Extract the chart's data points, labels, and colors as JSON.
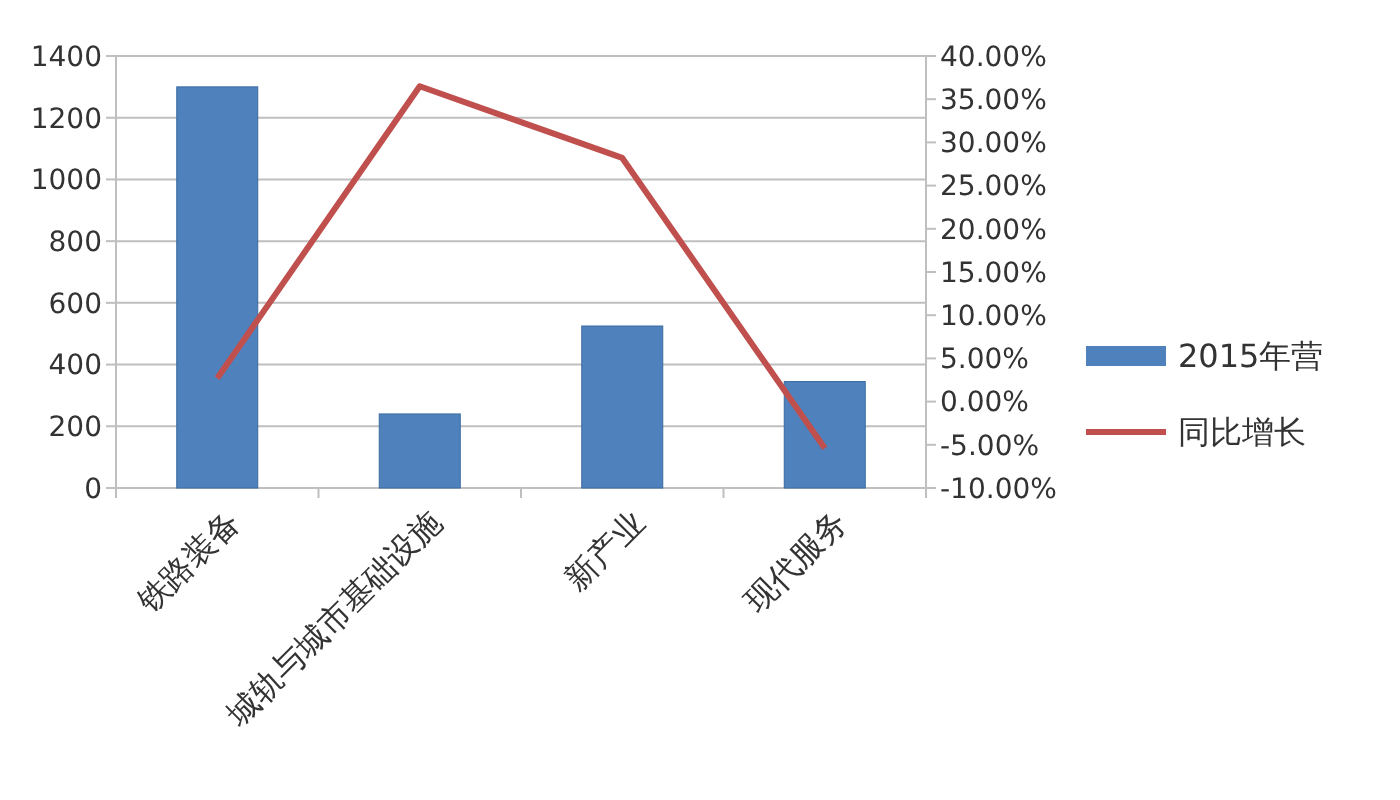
{
  "chart_data": {
    "type": "bar",
    "categories": [
      "铁路装备",
      "城轨与城市基础设施",
      "新产业",
      "现代服务"
    ],
    "series": [
      {
        "name": "2015年营",
        "color": "#4f81bd",
        "values": [
          1300,
          240,
          525,
          345
        ]
      },
      {
        "name": "同比增长",
        "type": "line",
        "axis": "y2",
        "color": "#c0504d",
        "values": [
          2.7,
          36.5,
          28.2,
          -5.4
        ]
      }
    ],
    "ylim": [
      0,
      1400
    ],
    "yticks": [
      0,
      200,
      400,
      600,
      800,
      1000,
      1200,
      1400
    ],
    "y2lim": [
      -10,
      40
    ],
    "y2ticks": [
      {
        "value": -10,
        "label": "-10.00%"
      },
      {
        "value": -5,
        "label": "-5.00%"
      },
      {
        "value": 0,
        "label": "0.00%"
      },
      {
        "value": 5,
        "label": "5.00%"
      },
      {
        "value": 10,
        "label": "10.00%"
      },
      {
        "value": 15,
        "label": "15.00%"
      },
      {
        "value": 20,
        "label": "20.00%"
      },
      {
        "value": 25,
        "label": "25.00%"
      },
      {
        "value": 30,
        "label": "30.00%"
      },
      {
        "value": 35,
        "label": "35.00%"
      },
      {
        "value": 40,
        "label": "40.00%"
      }
    ],
    "grid": "y",
    "legend": "right",
    "marker": "none"
  }
}
